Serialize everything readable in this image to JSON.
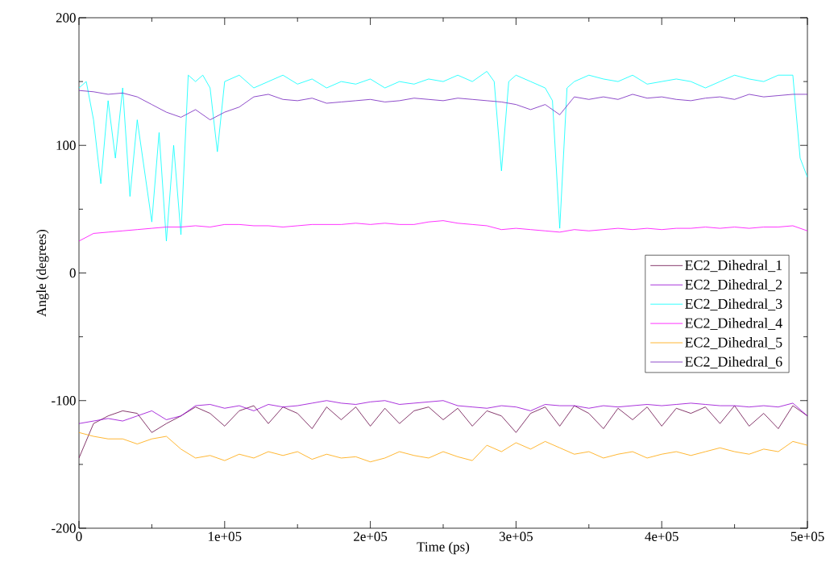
{
  "chart_data": {
    "type": "line",
    "xlabel": "Time (ps)",
    "ylabel": "Angle (degrees)",
    "xlim": [
      0,
      500000
    ],
    "ylim": [
      -200,
      200
    ],
    "xticks": [
      0,
      {
        "value": 100000,
        "label": "1e+05"
      },
      {
        "value": 200000,
        "label": "2e+05"
      },
      {
        "value": 300000,
        "label": "3e+05"
      },
      {
        "value": 400000,
        "label": "4e+05"
      },
      {
        "value": 500000,
        "label": "5e+05"
      }
    ],
    "yticks": [
      -200,
      -100,
      0,
      100,
      200
    ],
    "legend": "right",
    "line_style": "solid",
    "x": [
      0,
      10000,
      20000,
      30000,
      40000,
      50000,
      60000,
      70000,
      80000,
      90000,
      100000,
      110000,
      120000,
      130000,
      140000,
      150000,
      160000,
      170000,
      180000,
      190000,
      200000,
      210000,
      220000,
      230000,
      240000,
      250000,
      260000,
      270000,
      280000,
      290000,
      300000,
      310000,
      320000,
      330000,
      340000,
      350000,
      360000,
      370000,
      380000,
      390000,
      400000,
      410000,
      420000,
      430000,
      440000,
      450000,
      460000,
      470000,
      480000,
      490000,
      500000
    ],
    "series": [
      {
        "name": "EC2_Dihedral_1",
        "color": "#670748",
        "values": [
          -145,
          -118,
          -112,
          -108,
          -110,
          -125,
          -118,
          -112,
          -105,
          -110,
          -120,
          -108,
          -104,
          -118,
          -105,
          -110,
          -122,
          -105,
          -115,
          -105,
          -120,
          -106,
          -118,
          -108,
          -105,
          -115,
          -106,
          -120,
          -108,
          -112,
          -125,
          -110,
          -105,
          -120,
          -104,
          -110,
          -122,
          -106,
          -115,
          -105,
          -120,
          -106,
          -110,
          -105,
          -118,
          -104,
          -120,
          -110,
          -122,
          -104,
          -112
        ]
      },
      {
        "name": "EC2_Dihedral_2",
        "color": "#9400d3",
        "values": [
          -118,
          -116,
          -114,
          -116,
          -112,
          -108,
          -115,
          -112,
          -104,
          -103,
          -106,
          -104,
          -108,
          -103,
          -105,
          -104,
          -102,
          -100,
          -102,
          -103,
          -101,
          -100,
          -103,
          -102,
          -101,
          -100,
          -104,
          -105,
          -106,
          -104,
          -105,
          -108,
          -103,
          -104,
          -104,
          -106,
          -104,
          -105,
          -104,
          -103,
          -104,
          -103,
          -102,
          -103,
          -104,
          -104,
          -105,
          -104,
          -105,
          -102,
          -112
        ]
      },
      {
        "name": "EC2_Dihedral_3",
        "color": "#00ffff",
        "x": [
          0,
          5000,
          10000,
          15000,
          20000,
          25000,
          30000,
          35000,
          40000,
          45000,
          50000,
          55000,
          60000,
          65000,
          70000,
          75000,
          80000,
          85000,
          90000,
          95000,
          100000,
          110000,
          120000,
          130000,
          140000,
          150000,
          160000,
          170000,
          180000,
          190000,
          200000,
          210000,
          220000,
          230000,
          240000,
          250000,
          260000,
          270000,
          280000,
          285000,
          290000,
          295000,
          300000,
          310000,
          320000,
          325000,
          330000,
          335000,
          340000,
          350000,
          360000,
          370000,
          380000,
          390000,
          400000,
          410000,
          420000,
          430000,
          440000,
          450000,
          460000,
          470000,
          480000,
          490000,
          495000,
          500000
        ],
        "values": [
          145,
          150,
          120,
          70,
          135,
          90,
          145,
          60,
          120,
          80,
          40,
          110,
          25,
          100,
          30,
          155,
          150,
          155,
          145,
          95,
          150,
          155,
          145,
          150,
          155,
          148,
          152,
          145,
          150,
          148,
          152,
          145,
          150,
          148,
          152,
          150,
          155,
          150,
          158,
          150,
          80,
          150,
          155,
          150,
          145,
          135,
          35,
          145,
          150,
          155,
          152,
          150,
          155,
          148,
          150,
          152,
          150,
          145,
          150,
          155,
          152,
          150,
          155,
          155,
          90,
          75
        ]
      },
      {
        "name": "EC2_Dihedral_4",
        "color": "#ff00ff",
        "values": [
          25,
          31,
          32,
          33,
          34,
          35,
          36,
          36,
          37,
          36,
          38,
          38,
          37,
          37,
          36,
          37,
          38,
          38,
          38,
          39,
          38,
          39,
          38,
          38,
          40,
          41,
          39,
          38,
          37,
          34,
          35,
          34,
          33,
          32,
          34,
          33,
          34,
          35,
          34,
          35,
          34,
          35,
          35,
          36,
          35,
          36,
          35,
          36,
          36,
          37,
          33
        ]
      },
      {
        "name": "EC2_Dihedral_5",
        "color": "#ffa500",
        "values": [
          -125,
          -128,
          -130,
          -130,
          -134,
          -130,
          -128,
          -138,
          -145,
          -143,
          -147,
          -142,
          -145,
          -140,
          -143,
          -140,
          -146,
          -142,
          -145,
          -144,
          -148,
          -145,
          -140,
          -143,
          -145,
          -140,
          -144,
          -147,
          -135,
          -140,
          -133,
          -138,
          -132,
          -137,
          -142,
          -140,
          -145,
          -142,
          -140,
          -145,
          -142,
          -140,
          -143,
          -140,
          -137,
          -140,
          -142,
          -138,
          -140,
          -132,
          -135
        ]
      },
      {
        "name": "EC2_Dihedral_6",
        "color": "#7221bc",
        "values": [
          143,
          142,
          140,
          141,
          138,
          132,
          126,
          122,
          128,
          120,
          126,
          130,
          138,
          140,
          136,
          135,
          137,
          133,
          134,
          135,
          136,
          134,
          135,
          137,
          136,
          135,
          137,
          136,
          135,
          134,
          132,
          128,
          132,
          124,
          138,
          136,
          138,
          136,
          140,
          137,
          138,
          136,
          135,
          137,
          138,
          136,
          140,
          138,
          139,
          140,
          140
        ]
      }
    ]
  }
}
